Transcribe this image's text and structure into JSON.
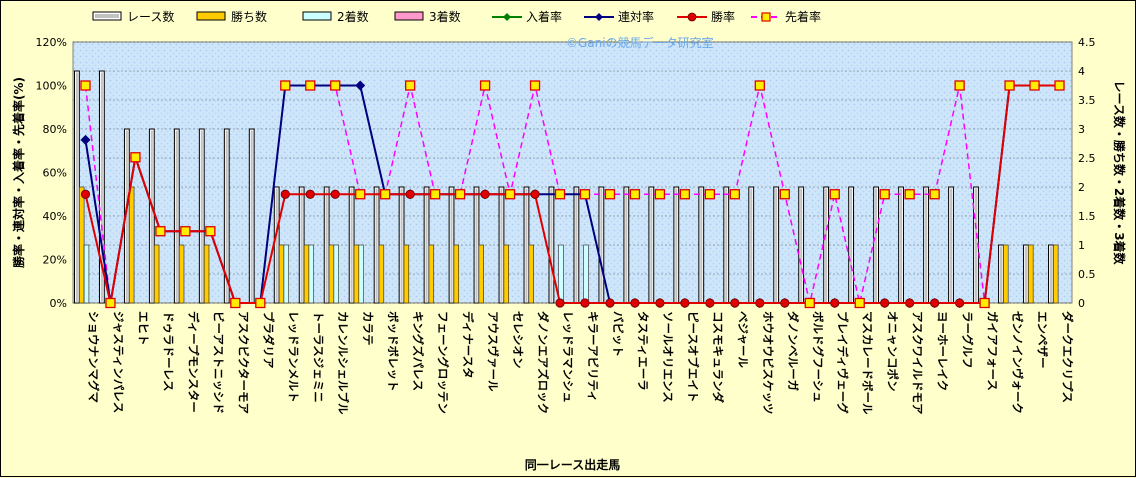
{
  "chart_data": {
    "type": "bar",
    "title": "",
    "xlabel": "同一レース出走馬",
    "ylabel_left": "勝率・連対率・入着率・先着率(%)",
    "ylabel_right": "レース数・勝ち数・2着数・3着数",
    "watermark": "©Ganiの競馬データ研究室",
    "ylim_left": [
      0,
      120
    ],
    "ylim_right": [
      0,
      4.5
    ],
    "left_ticks": [
      "0%",
      "20%",
      "40%",
      "60%",
      "80%",
      "100%",
      "120%"
    ],
    "right_ticks": [
      "0",
      "0.5",
      "1",
      "1.5",
      "2",
      "2.5",
      "3",
      "3.5",
      "4",
      "4.5"
    ],
    "grid": true,
    "legend_position": "top",
    "categories": [
      "ショウナンマグマ",
      "ジャスティンパレス",
      "エヒト",
      "ドゥラドーレス",
      "ディープモンスター",
      "ビーアストニッシド",
      "アスクビクターモア",
      "ブラダリア",
      "レッドランメルト",
      "トーラスジェミニ",
      "カレンルシェルブル",
      "カラテ",
      "ボッドボレット",
      "キングズパレス",
      "フェーングロッテン",
      "ディナースタ",
      "アウスヴァール",
      "セレシオン",
      "ダノンエアズロック",
      "レッドラマンシュ",
      "キラーアビリティ",
      "バビット",
      "タスティエーラ",
      "ソールオリエンス",
      "ピースオブエイト",
      "コスモキュランダ",
      "ベジャール",
      "ホウオウビスケッツ",
      "ダノンベルーガ",
      "ボルドグフーシュ",
      "ブレイディヴェーグ",
      "マスカレードボール",
      "オニャンコポン",
      "アスクワイルドモア",
      "ヨーホーレイク",
      "ラーグルフ",
      "ガイアフォース",
      "ゼンノインヴォーク",
      "エンペザー",
      "ダークエクリプス"
    ],
    "series": [
      {
        "name": "レース数",
        "axis": "right",
        "color": "#f0f0f0",
        "values": [
          4,
          4,
          3,
          3,
          3,
          3,
          3,
          3,
          2,
          2,
          2,
          2,
          2,
          2,
          2,
          2,
          2,
          2,
          2,
          2,
          2,
          2,
          2,
          2,
          2,
          2,
          2,
          2,
          2,
          2,
          2,
          2,
          2,
          2,
          2,
          2,
          2,
          1,
          1,
          1
        ]
      },
      {
        "name": "勝ち数",
        "axis": "right",
        "color": "#ffcc00",
        "values": [
          2,
          0,
          2,
          1,
          1,
          1,
          0,
          0,
          1,
          1,
          1,
          1,
          1,
          1,
          1,
          1,
          1,
          1,
          1,
          0,
          0,
          0,
          0,
          0,
          0,
          0,
          0,
          0,
          0,
          0,
          0,
          0,
          0,
          0,
          0,
          0,
          0,
          1,
          1,
          1
        ]
      },
      {
        "name": "2着数",
        "axis": "right",
        "color": "#ccffff",
        "values": [
          1,
          0,
          0,
          0,
          0,
          0,
          0,
          0,
          1,
          1,
          1,
          1,
          0,
          0,
          0,
          0,
          0,
          0,
          0,
          1,
          1,
          0,
          0,
          0,
          0,
          0,
          0,
          0,
          0,
          0,
          0,
          0,
          0,
          0,
          0,
          0,
          0,
          0,
          0,
          0
        ]
      },
      {
        "name": "3着数",
        "axis": "right",
        "color": "#ff99cc",
        "values": [
          0,
          0,
          0,
          0,
          0,
          0,
          0,
          0,
          0,
          0,
          0,
          0,
          0,
          0,
          0,
          0,
          0,
          0,
          0,
          0,
          0,
          0,
          0,
          0,
          0,
          0,
          0,
          0,
          0,
          0,
          0,
          0,
          0,
          0,
          0,
          0,
          0,
          0,
          0,
          0
        ]
      },
      {
        "name": "入着率",
        "axis": "left",
        "color": "#008000",
        "values": [
          75,
          0,
          67,
          33,
          33,
          33,
          0,
          0,
          100,
          100,
          100,
          100,
          50,
          50,
          50,
          50,
          50,
          50,
          50,
          50,
          50,
          0,
          0,
          0,
          0,
          0,
          0,
          0,
          0,
          0,
          0,
          0,
          0,
          0,
          0,
          0,
          0,
          100,
          100,
          100
        ]
      },
      {
        "name": "連対率",
        "axis": "left",
        "color": "#000080",
        "values": [
          75,
          0,
          67,
          33,
          33,
          33,
          0,
          0,
          100,
          100,
          100,
          100,
          50,
          50,
          50,
          50,
          50,
          50,
          50,
          50,
          50,
          0,
          0,
          0,
          0,
          0,
          0,
          0,
          0,
          0,
          0,
          0,
          0,
          0,
          0,
          0,
          0,
          100,
          100,
          100
        ]
      },
      {
        "name": "勝率",
        "axis": "left",
        "color": "#e00000",
        "values": [
          50,
          0,
          67,
          33,
          33,
          33,
          0,
          0,
          50,
          50,
          50,
          50,
          50,
          50,
          50,
          50,
          50,
          50,
          50,
          0,
          0,
          0,
          0,
          0,
          0,
          0,
          0,
          0,
          0,
          0,
          0,
          0,
          0,
          0,
          0,
          0,
          0,
          100,
          100,
          100
        ]
      },
      {
        "name": "先着率",
        "axis": "left",
        "color": "#ff00ff",
        "values": [
          100,
          0,
          67,
          33,
          33,
          33,
          0,
          0,
          100,
          100,
          100,
          50,
          50,
          100,
          50,
          50,
          100,
          50,
          100,
          50,
          50,
          50,
          50,
          50,
          50,
          50,
          50,
          100,
          50,
          0,
          50,
          0,
          50,
          50,
          50,
          100,
          0,
          100,
          100,
          100
        ]
      }
    ]
  }
}
